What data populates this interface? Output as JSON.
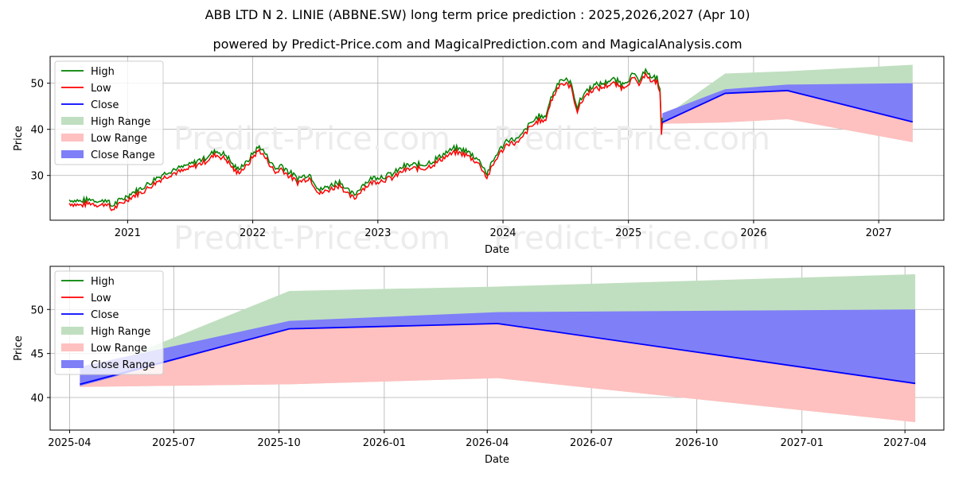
{
  "title": "ABB LTD N 2. LINIE (ABBNE.SW) long term price prediction : 2025,2026,2027 (Apr 10)",
  "subtitle": "powered by Predict-Price.com and MagicalPrediction.com and MagicalAnalysis.com",
  "watermark": "Predict-Price.com",
  "colors": {
    "high": "#008000",
    "low": "#ff0000",
    "close": "#0000ff",
    "high_range": "#c0dfc0",
    "low_range": "#ffc0c0",
    "close_range": "#7f7ff8"
  },
  "chart_data": [
    {
      "type": "line",
      "xlabel": "Date",
      "ylabel": "Price",
      "xlim": [
        "2020-05-20",
        "2027-07-10"
      ],
      "ylim": [
        20.3,
        55.8
      ],
      "x_ticks": [
        "2021",
        "2022",
        "2023",
        "2024",
        "2025",
        "2026",
        "2027"
      ],
      "y_ticks": [
        30,
        40,
        50
      ],
      "grid": true,
      "legend": "top-left",
      "legend_entries": [
        "High",
        "Low",
        "Close",
        "High Range",
        "Low Range",
        "Close Range"
      ],
      "series": [
        {
          "name": "Low",
          "x": [
            "2020-07-15",
            "2020-08-15",
            "2020-09-15",
            "2020-10-15",
            "2020-11-01",
            "2020-11-15",
            "2020-12-15",
            "2021-01-15",
            "2021-02-15",
            "2021-03-15",
            "2021-04-15",
            "2021-05-15",
            "2021-06-15",
            "2021-07-15",
            "2021-08-15",
            "2021-09-15",
            "2021-10-15",
            "2021-11-15",
            "2021-12-15",
            "2022-01-01",
            "2022-01-20",
            "2022-02-15",
            "2022-03-08",
            "2022-03-25",
            "2022-04-15",
            "2022-05-12",
            "2022-06-15",
            "2022-07-15",
            "2022-08-15",
            "2022-09-15",
            "2022-10-01",
            "2022-10-25",
            "2022-11-15",
            "2022-12-15",
            "2023-01-15",
            "2023-02-15",
            "2023-03-15",
            "2023-04-15",
            "2023-05-15",
            "2023-06-15",
            "2023-07-15",
            "2023-08-15",
            "2023-09-15",
            "2023-10-15",
            "2023-10-28",
            "2023-11-15",
            "2023-12-15",
            "2024-01-15",
            "2024-02-15",
            "2024-03-15",
            "2024-04-15",
            "2024-05-01",
            "2024-05-20",
            "2024-06-15",
            "2024-07-15",
            "2024-08-05",
            "2024-08-25",
            "2024-09-15",
            "2024-10-15",
            "2024-11-15",
            "2024-12-15",
            "2025-01-15",
            "2025-02-05",
            "2025-02-20",
            "2025-03-10",
            "2025-03-25",
            "2025-04-03",
            "2025-04-07",
            "2025-04-10"
          ],
          "values": [
            24,
            23.5,
            24,
            23.5,
            24,
            22.5,
            24,
            25.5,
            26.5,
            28,
            29.5,
            30.5,
            31,
            32,
            33,
            34.5,
            33.5,
            30.5,
            32,
            34,
            35.5,
            33,
            30.5,
            31.5,
            30,
            28.5,
            29.5,
            26,
            27,
            28,
            26,
            25,
            27,
            28.5,
            29,
            29.5,
            31,
            31.5,
            31.5,
            32.5,
            34,
            35,
            34.5,
            33,
            32,
            29.5,
            34,
            37,
            37,
            40,
            42,
            41.5,
            46,
            50,
            49.5,
            44,
            47,
            48.5,
            49,
            50,
            49,
            51,
            49.5,
            52.5,
            50,
            50.5,
            48,
            39,
            41.5
          ]
        },
        {
          "name": "Close",
          "x": [
            "2025-04-10",
            "2025-10-10",
            "2026-04-10",
            "2027-04-10"
          ],
          "values": [
            41.5,
            47.8,
            48.4,
            41.6
          ]
        },
        {
          "name": "High Range",
          "x": [
            "2025-04-10",
            "2025-10-10",
            "2026-04-10",
            "2027-04-10"
          ],
          "upper": [
            42.5,
            52.1,
            52.6,
            54
          ],
          "lower": [
            41.2,
            41.5,
            42.2,
            37.2
          ]
        },
        {
          "name": "Low Range",
          "x": [
            "2025-04-10",
            "2025-10-10",
            "2026-04-10",
            "2027-04-10"
          ],
          "upper": [
            42.5,
            48.3,
            49.6,
            50
          ],
          "lower": [
            41.2,
            41.5,
            42.2,
            37.2
          ]
        },
        {
          "name": "Close Range",
          "x": [
            "2025-04-10",
            "2025-10-10",
            "2026-04-10",
            "2027-04-10"
          ],
          "upper": [
            43.5,
            48.7,
            49.7,
            50
          ],
          "lower": [
            41.3,
            47.8,
            48.4,
            41.6
          ]
        }
      ]
    },
    {
      "type": "line",
      "xlabel": "Date",
      "ylabel": "Price",
      "xlim": [
        "2025-03-15",
        "2027-05-05"
      ],
      "ylim": [
        36.3,
        54.9
      ],
      "x_ticks": [
        "2025-04",
        "2025-07",
        "2025-10",
        "2026-01",
        "2026-04",
        "2026-07",
        "2026-10",
        "2027-01",
        "2027-04"
      ],
      "y_ticks": [
        40,
        45,
        50
      ],
      "grid": true,
      "legend": "top-left",
      "legend_entries": [
        "High",
        "Low",
        "Close",
        "High Range",
        "Low Range",
        "Close Range"
      ],
      "series": [
        {
          "name": "Close",
          "x": [
            "2025-04-10",
            "2025-10-10",
            "2026-04-10",
            "2027-04-10"
          ],
          "values": [
            41.5,
            47.8,
            48.4,
            41.6
          ]
        },
        {
          "name": "High Range",
          "x": [
            "2025-04-10",
            "2025-10-10",
            "2026-04-10",
            "2027-04-10"
          ],
          "upper": [
            42.5,
            52.1,
            52.6,
            54
          ],
          "lower": [
            41.2,
            41.5,
            42.2,
            37.2
          ]
        },
        {
          "name": "Low Range",
          "x": [
            "2025-04-10",
            "2025-10-10",
            "2026-04-10",
            "2027-04-10"
          ],
          "upper": [
            42.5,
            48.3,
            49.6,
            50
          ],
          "lower": [
            41.2,
            41.5,
            42.2,
            37.2
          ]
        },
        {
          "name": "Close Range",
          "x": [
            "2025-04-10",
            "2025-10-10",
            "2026-04-10",
            "2027-04-10"
          ],
          "upper": [
            43.5,
            48.7,
            49.7,
            50
          ],
          "lower": [
            41.3,
            47.8,
            48.4,
            41.6
          ]
        }
      ]
    }
  ]
}
